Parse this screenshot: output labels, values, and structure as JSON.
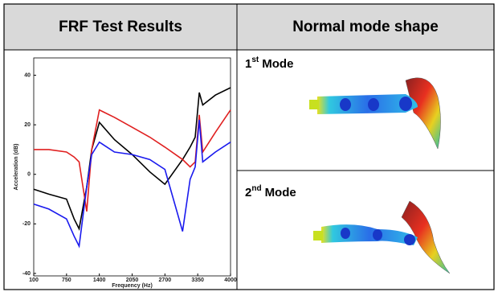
{
  "header": {
    "left": "FRF Test Results",
    "right": "Normal mode shape"
  },
  "modes": [
    {
      "number": "1",
      "ordinal": "st",
      "label": "Mode"
    },
    {
      "number": "2",
      "ordinal": "nd",
      "label": "Mode"
    }
  ],
  "chart_data": {
    "type": "line",
    "x_label": "Frequency (Hz)",
    "y_label": "Acceleration (dB)",
    "x": [
      100,
      400,
      750,
      900,
      1000,
      1150,
      1250,
      1400,
      1700,
      2050,
      2400,
      2700,
      3050,
      3200,
      3300,
      3380,
      3450,
      3700,
      4000
    ],
    "xlim": [
      100,
      4000
    ],
    "xticks": [
      100,
      750,
      1400,
      2050,
      2700,
      3350,
      4000
    ],
    "ylim": [
      -41,
      47
    ],
    "yticks": [
      40,
      20,
      0,
      -20,
      -40
    ],
    "series": [
      {
        "color": "#000000",
        "values": [
          -6,
          -8,
          -10,
          -18,
          -22,
          -5,
          10,
          21,
          14,
          8,
          1,
          -4,
          6,
          11,
          15,
          33,
          28,
          32,
          35
        ]
      },
      {
        "color": "#e02020",
        "values": [
          10,
          10,
          9,
          7,
          5,
          -15,
          10,
          26,
          23,
          19,
          15,
          11,
          6,
          3,
          5,
          24,
          9,
          17,
          26
        ]
      },
      {
        "color": "#1a1aee",
        "values": [
          -12,
          -14,
          -18,
          -25,
          -29,
          -5,
          8,
          13,
          9,
          8,
          6,
          2,
          -23,
          -2,
          3,
          22,
          5,
          9,
          13
        ]
      }
    ]
  }
}
